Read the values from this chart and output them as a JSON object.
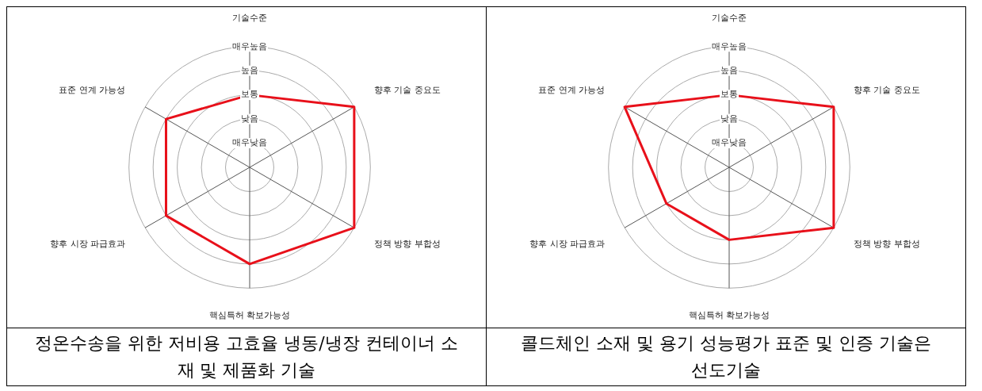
{
  "chart_data": [
    {
      "type": "radar",
      "title": "정온수송을 위한 저비용 고효율 냉동/냉장 컨테이너 소재 및 제품화 기술",
      "categories": [
        "기술수준",
        "향후 기술 중요도",
        "정책 방향 부합성",
        "핵심특허 확보가능성",
        "향후 시장 파급효과",
        "표준 연계 가능성"
      ],
      "series": [
        {
          "color": "#e8101a",
          "values": [
            3,
            5,
            5,
            4,
            4,
            4
          ]
        }
      ],
      "ylim": [
        0,
        5
      ],
      "yticks": [
        {
          "value": 1,
          "label": "매우낮음"
        },
        {
          "value": 2,
          "label": "낮음"
        },
        {
          "value": 3,
          "label": "보통"
        },
        {
          "value": 4,
          "label": "높음"
        },
        {
          "value": 5,
          "label": "매우높음"
        }
      ],
      "grid": true,
      "marker": "none"
    },
    {
      "type": "radar",
      "title": "콜드체인 소재 및 용기 성능평가 표준 및 인증 기술은 선도기술",
      "categories": [
        "기술수준",
        "향후 기술 중요도",
        "정책 방향 부합성",
        "핵심특허 확보가능성",
        "향후 시장 파급효과",
        "표준 연계 가능성"
      ],
      "series": [
        {
          "color": "#e8101a",
          "values": [
            3,
            5,
            5,
            3,
            3,
            5
          ]
        }
      ],
      "ylim": [
        0,
        5
      ],
      "yticks": [
        {
          "value": 1,
          "label": "매우낮음"
        },
        {
          "value": 2,
          "label": "낮음"
        },
        {
          "value": 3,
          "label": "보통"
        },
        {
          "value": 4,
          "label": "높음"
        },
        {
          "value": 5,
          "label": "매우높음"
        }
      ],
      "grid": true,
      "marker": "none"
    }
  ]
}
